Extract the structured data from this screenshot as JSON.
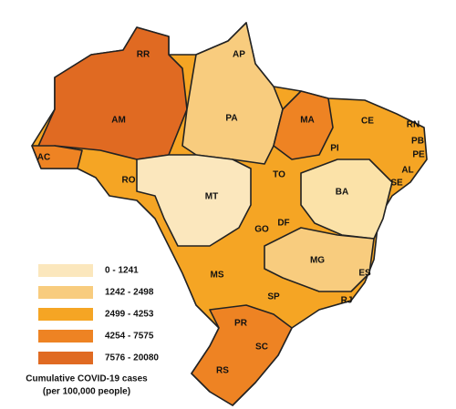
{
  "map": {
    "states": [
      {
        "label": "RR"
      },
      {
        "label": "AP"
      },
      {
        "label": "AM"
      },
      {
        "label": "PA"
      },
      {
        "label": "MA"
      },
      {
        "label": "CE"
      },
      {
        "label": "RN"
      },
      {
        "label": "PB"
      },
      {
        "label": "PE"
      },
      {
        "label": "AC"
      },
      {
        "label": "RO"
      },
      {
        "label": "PI"
      },
      {
        "label": "AL"
      },
      {
        "label": "SE"
      },
      {
        "label": "TO"
      },
      {
        "label": "MT"
      },
      {
        "label": "BA"
      },
      {
        "label": "GO"
      },
      {
        "label": "DF"
      },
      {
        "label": "MG"
      },
      {
        "label": "ES"
      },
      {
        "label": "MS"
      },
      {
        "label": "SP"
      },
      {
        "label": "RJ"
      },
      {
        "label": "PR"
      },
      {
        "label": "SC"
      },
      {
        "label": "RS"
      }
    ],
    "legend": {
      "title": [
        "Cumulative COVID-19 cases",
        "(per 100,000 people)"
      ],
      "items": [
        {
          "label": "0 - 1241",
          "color": "#fbe7bd"
        },
        {
          "label": "1242 - 2498",
          "color": "#f8cc7e"
        },
        {
          "label": "2499 - 4253",
          "color": "#f5a524"
        },
        {
          "label": "4254 - 7575",
          "color": "#ee8323"
        },
        {
          "label": "7576 - 20080",
          "color": "#e06a22"
        }
      ]
    }
  }
}
